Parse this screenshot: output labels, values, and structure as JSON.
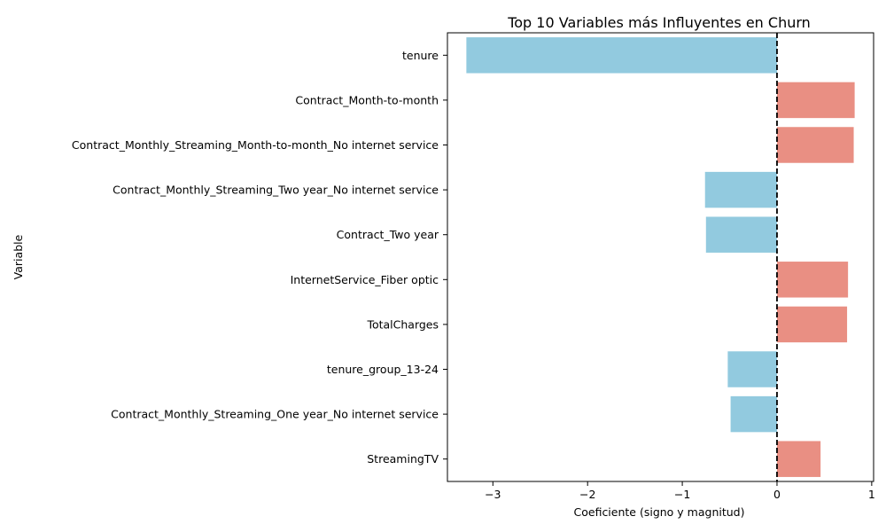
{
  "chart_data": {
    "type": "bar",
    "orientation": "horizontal",
    "title": "Top 10 Variables más Influyentes en Churn",
    "xlabel": "Coeficiente (signo y magnitud)",
    "ylabel": "Variable",
    "categories": [
      "tenure",
      "Contract_Month-to-month",
      "Contract_Monthly_Streaming_Month-to-month_No internet service",
      "Contract_Monthly_Streaming_Two year_No internet service",
      "Contract_Two year",
      "InternetService_Fiber optic",
      "TotalCharges",
      "tenure_group_13-24",
      "Contract_Monthly_Streaming_One year_No internet service",
      "StreamingTV"
    ],
    "values": [
      -3.28,
      0.82,
      0.81,
      -0.76,
      -0.75,
      0.75,
      0.74,
      -0.52,
      -0.49,
      0.46
    ],
    "xlim": [
      -3.48,
      1.02
    ],
    "xticks": [
      -3,
      -2,
      -1,
      0,
      1
    ],
    "xtick_labels": [
      "−3",
      "−2",
      "−1",
      "0",
      "1"
    ],
    "grid": false,
    "zero_line": {
      "x": 0,
      "style": "dashed",
      "color": "#000000"
    },
    "colors": {
      "negative": "#92CADF",
      "positive": "#E98F83"
    }
  }
}
